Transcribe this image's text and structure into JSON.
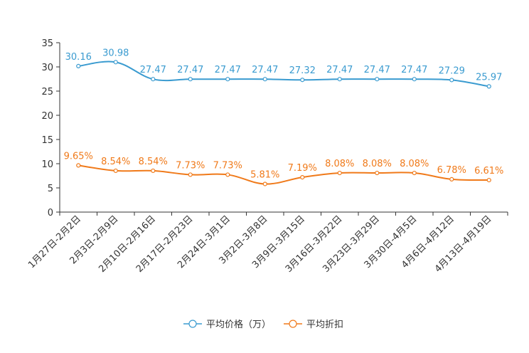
{
  "chart_data": {
    "type": "line",
    "categories": [
      "1月27日-2月2日",
      "2月3日-2月9日",
      "2月10日-2月16日",
      "2月17日-2月23日",
      "2月24日-3月1日",
      "3月2日-3月8日",
      "3月9日-3月15日",
      "3月16日-3月22日",
      "3月23日-3月29日",
      "3月30日-4月5日",
      "4月6日-4月12日",
      "4月13日-4月19日"
    ],
    "ylim": [
      0,
      35
    ],
    "yticks": [
      0,
      5,
      10,
      15,
      20,
      25,
      30,
      35
    ],
    "series": [
      {
        "name": "平均价格（万）",
        "color": "#3a9bd0",
        "values": [
          30.16,
          30.98,
          27.47,
          27.47,
          27.47,
          27.47,
          27.32,
          27.47,
          27.47,
          27.47,
          27.29,
          25.97
        ],
        "labels": [
          "30.16",
          "30.98",
          "27.47",
          "27.47",
          "27.47",
          "27.47",
          "27.32",
          "27.47",
          "27.47",
          "27.47",
          "27.29",
          "25.97"
        ]
      },
      {
        "name": "平均折扣",
        "color": "#f07a1a",
        "values": [
          9.65,
          8.54,
          8.54,
          7.73,
          7.73,
          5.81,
          7.19,
          8.08,
          8.08,
          8.08,
          6.78,
          6.61
        ],
        "labels": [
          "9.65%",
          "8.54%",
          "8.54%",
          "7.73%",
          "7.73%",
          "5.81%",
          "7.19%",
          "8.08%",
          "8.08%",
          "8.08%",
          "6.78%",
          "6.61%"
        ]
      }
    ]
  }
}
